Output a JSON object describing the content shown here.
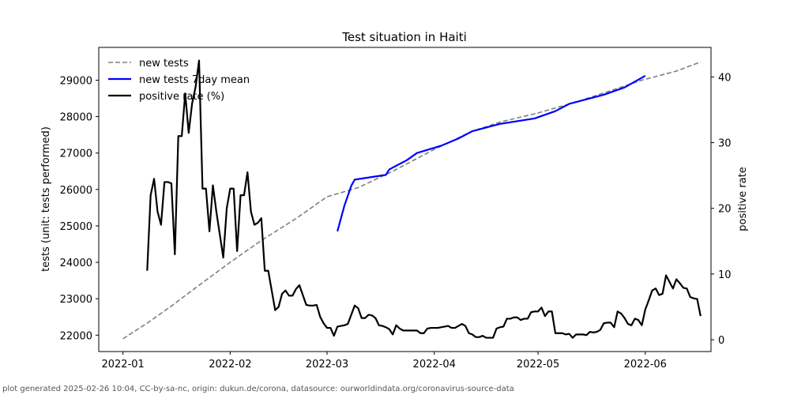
{
  "chart_data": {
    "type": "line",
    "title": "Test situation in Haiti",
    "ylabel": "tests (unit: tests performed)",
    "y2label": "positive rate",
    "grid": false,
    "legend_position": "top-left",
    "xlim": [
      "2021-12-25",
      "2022-06-20"
    ],
    "ylim": [
      21550,
      29900
    ],
    "y2lim": [
      -1.8,
      44.5
    ],
    "x_ticks": [
      "2022-01-01",
      "2022-02-01",
      "2022-03-01",
      "2022-04-01",
      "2022-05-01",
      "2022-06-01"
    ],
    "x_tick_labels": [
      "2022-01",
      "2022-02",
      "2022-03",
      "2022-04",
      "2022-05",
      "2022-06"
    ],
    "y_ticks": [
      22000,
      23000,
      24000,
      25000,
      26000,
      27000,
      28000,
      29000
    ],
    "y2_ticks": [
      0,
      10,
      20,
      30,
      40
    ],
    "series": [
      {
        "name": "new tests",
        "axis": "left",
        "color": "#808080",
        "style": "dashed",
        "points": [
          [
            "2022-01-01",
            21900
          ],
          [
            "2022-01-08",
            22330
          ],
          [
            "2022-01-15",
            22800
          ],
          [
            "2022-01-22",
            23300
          ],
          [
            "2022-02-01",
            24000
          ],
          [
            "2022-02-10",
            24600
          ],
          [
            "2022-02-20",
            25200
          ],
          [
            "2022-03-01",
            25800
          ],
          [
            "2022-03-10",
            26050
          ],
          [
            "2022-03-20",
            26500
          ],
          [
            "2022-04-01",
            27100
          ],
          [
            "2022-04-12",
            27600
          ],
          [
            "2022-04-20",
            27850
          ],
          [
            "2022-05-01",
            28100
          ],
          [
            "2022-05-12",
            28400
          ],
          [
            "2022-05-20",
            28650
          ],
          [
            "2022-05-31",
            29000
          ],
          [
            "2022-06-10",
            29250
          ],
          [
            "2022-06-17",
            29500
          ]
        ]
      },
      {
        "name": "new tests 7day mean",
        "axis": "left",
        "color": "#0000ff",
        "style": "solid",
        "points": [
          [
            "2022-03-04",
            24850
          ],
          [
            "2022-03-06",
            25550
          ],
          [
            "2022-03-08",
            26100
          ],
          [
            "2022-03-09",
            26270
          ],
          [
            "2022-03-18",
            26400
          ],
          [
            "2022-03-19",
            26550
          ],
          [
            "2022-03-24",
            26800
          ],
          [
            "2022-03-27",
            27000
          ],
          [
            "2022-04-03",
            27200
          ],
          [
            "2022-04-08",
            27400
          ],
          [
            "2022-04-12",
            27600
          ],
          [
            "2022-04-20",
            27800
          ],
          [
            "2022-04-30",
            27950
          ],
          [
            "2022-05-06",
            28150
          ],
          [
            "2022-05-10",
            28350
          ],
          [
            "2022-05-20",
            28600
          ],
          [
            "2022-05-26",
            28800
          ],
          [
            "2022-06-01",
            29120
          ]
        ]
      },
      {
        "name": "positive rate (%)",
        "axis": "right",
        "color": "#000000",
        "style": "solid",
        "points": [
          [
            "2022-01-08",
            10.5
          ],
          [
            "2022-01-09",
            22
          ],
          [
            "2022-01-10",
            24.5
          ],
          [
            "2022-01-11",
            19.5
          ],
          [
            "2022-01-12",
            17.5
          ],
          [
            "2022-01-13",
            24
          ],
          [
            "2022-01-14",
            24
          ],
          [
            "2022-01-15",
            23.8
          ],
          [
            "2022-01-16",
            13
          ],
          [
            "2022-01-17",
            31
          ],
          [
            "2022-01-18",
            31
          ],
          [
            "2022-01-19",
            37.5
          ],
          [
            "2022-01-20",
            31.5
          ],
          [
            "2022-01-21",
            36
          ],
          [
            "2022-01-22",
            38.5
          ],
          [
            "2022-01-23",
            42.5
          ],
          [
            "2022-01-24",
            23
          ],
          [
            "2022-01-25",
            23
          ],
          [
            "2022-01-26",
            16.5
          ],
          [
            "2022-01-27",
            23.5
          ],
          [
            "2022-01-28",
            19.5
          ],
          [
            "2022-01-29",
            16
          ],
          [
            "2022-01-30",
            12.5
          ],
          [
            "2022-01-31",
            20
          ],
          [
            "2022-02-01",
            23
          ],
          [
            "2022-02-02",
            23
          ],
          [
            "2022-02-03",
            13.5
          ],
          [
            "2022-02-04",
            22
          ],
          [
            "2022-02-05",
            22
          ],
          [
            "2022-02-06",
            25.5
          ],
          [
            "2022-02-07",
            19.5
          ],
          [
            "2022-02-08",
            17.5
          ],
          [
            "2022-02-09",
            17.8
          ],
          [
            "2022-02-10",
            18.5
          ],
          [
            "2022-02-11",
            10.5
          ],
          [
            "2022-02-12",
            10.5
          ],
          [
            "2022-02-13",
            7.5
          ],
          [
            "2022-02-14",
            4.5
          ],
          [
            "2022-02-15",
            5
          ],
          [
            "2022-02-16",
            7
          ],
          [
            "2022-02-17",
            7.5
          ],
          [
            "2022-02-18",
            6.7
          ],
          [
            "2022-02-19",
            6.7
          ],
          [
            "2022-02-20",
            7.7
          ],
          [
            "2022-02-21",
            8.3
          ],
          [
            "2022-02-22",
            6.8
          ],
          [
            "2022-02-23",
            5.3
          ],
          [
            "2022-02-24",
            5.2
          ],
          [
            "2022-02-25",
            5.2
          ],
          [
            "2022-02-26",
            5.3
          ],
          [
            "2022-02-27",
            3.5
          ],
          [
            "2022-02-28",
            2.5
          ],
          [
            "2022-03-01",
            1.8
          ],
          [
            "2022-03-02",
            1.8
          ],
          [
            "2022-03-03",
            0.6
          ],
          [
            "2022-03-04",
            2
          ],
          [
            "2022-03-05",
            2.1
          ],
          [
            "2022-03-06",
            2.2
          ],
          [
            "2022-03-07",
            2.4
          ],
          [
            "2022-03-08",
            3.8
          ],
          [
            "2022-03-09",
            5.2
          ],
          [
            "2022-03-10",
            4.8
          ],
          [
            "2022-03-11",
            3.3
          ],
          [
            "2022-03-12",
            3.3
          ],
          [
            "2022-03-13",
            3.8
          ],
          [
            "2022-03-14",
            3.7
          ],
          [
            "2022-03-15",
            3.3
          ],
          [
            "2022-03-16",
            2.2
          ],
          [
            "2022-03-17",
            2.1
          ],
          [
            "2022-03-18",
            1.9
          ],
          [
            "2022-03-19",
            1.6
          ],
          [
            "2022-03-20",
            0.8
          ],
          [
            "2022-03-21",
            2.2
          ],
          [
            "2022-03-22",
            1.7
          ],
          [
            "2022-03-23",
            1.4
          ],
          [
            "2022-03-24",
            1.4
          ],
          [
            "2022-03-25",
            1.4
          ],
          [
            "2022-03-26",
            1.4
          ],
          [
            "2022-03-27",
            1.4
          ],
          [
            "2022-03-28",
            1.0
          ],
          [
            "2022-03-29",
            1.0
          ],
          [
            "2022-03-30",
            1.7
          ],
          [
            "2022-03-31",
            1.8
          ],
          [
            "2022-04-01",
            1.8
          ],
          [
            "2022-04-02",
            1.8
          ],
          [
            "2022-04-03",
            1.9
          ],
          [
            "2022-04-04",
            2.0
          ],
          [
            "2022-04-05",
            2.1
          ],
          [
            "2022-04-06",
            1.8
          ],
          [
            "2022-04-07",
            1.8
          ],
          [
            "2022-04-08",
            2.1
          ],
          [
            "2022-04-09",
            2.4
          ],
          [
            "2022-04-10",
            2.1
          ],
          [
            "2022-04-11",
            1.0
          ],
          [
            "2022-04-12",
            0.8
          ],
          [
            "2022-04-13",
            0.4
          ],
          [
            "2022-04-14",
            0.4
          ],
          [
            "2022-04-15",
            0.6
          ],
          [
            "2022-04-16",
            0.3
          ],
          [
            "2022-04-17",
            0.3
          ],
          [
            "2022-04-18",
            0.3
          ],
          [
            "2022-04-19",
            1.7
          ],
          [
            "2022-04-20",
            1.9
          ],
          [
            "2022-04-21",
            2.0
          ],
          [
            "2022-04-22",
            3.2
          ],
          [
            "2022-04-23",
            3.2
          ],
          [
            "2022-04-24",
            3.4
          ],
          [
            "2022-04-25",
            3.4
          ],
          [
            "2022-04-26",
            3.0
          ],
          [
            "2022-04-27",
            3.2
          ],
          [
            "2022-04-28",
            3.2
          ],
          [
            "2022-04-29",
            4.2
          ],
          [
            "2022-04-30",
            4.3
          ],
          [
            "2022-05-01",
            4.3
          ],
          [
            "2022-05-02",
            4.9
          ],
          [
            "2022-05-03",
            3.6
          ],
          [
            "2022-05-04",
            4.3
          ],
          [
            "2022-05-05",
            4.3
          ],
          [
            "2022-05-06",
            1.0
          ],
          [
            "2022-05-07",
            1.0
          ],
          [
            "2022-05-08",
            1.0
          ],
          [
            "2022-05-09",
            0.8
          ],
          [
            "2022-05-10",
            0.9
          ],
          [
            "2022-05-11",
            0.3
          ],
          [
            "2022-05-12",
            0.8
          ],
          [
            "2022-05-13",
            0.8
          ],
          [
            "2022-05-14",
            0.8
          ],
          [
            "2022-05-15",
            0.7
          ],
          [
            "2022-05-16",
            1.2
          ],
          [
            "2022-05-17",
            1.1
          ],
          [
            "2022-05-18",
            1.2
          ],
          [
            "2022-05-19",
            1.5
          ],
          [
            "2022-05-20",
            2.5
          ],
          [
            "2022-05-21",
            2.6
          ],
          [
            "2022-05-22",
            2.6
          ],
          [
            "2022-05-23",
            1.9
          ],
          [
            "2022-05-24",
            4.3
          ],
          [
            "2022-05-25",
            4.0
          ],
          [
            "2022-05-26",
            3.3
          ],
          [
            "2022-05-27",
            2.4
          ],
          [
            "2022-05-28",
            2.2
          ],
          [
            "2022-05-29",
            3.2
          ],
          [
            "2022-05-30",
            3.0
          ],
          [
            "2022-05-31",
            2.2
          ],
          [
            "2022-06-01",
            4.6
          ],
          [
            "2022-06-02",
            6.0
          ],
          [
            "2022-06-03",
            7.5
          ],
          [
            "2022-06-04",
            7.8
          ],
          [
            "2022-06-05",
            6.8
          ],
          [
            "2022-06-06",
            7.0
          ],
          [
            "2022-06-07",
            9.8
          ],
          [
            "2022-06-08",
            8.8
          ],
          [
            "2022-06-09",
            7.8
          ],
          [
            "2022-06-10",
            9.2
          ],
          [
            "2022-06-11",
            8.6
          ],
          [
            "2022-06-12",
            7.9
          ],
          [
            "2022-06-13",
            7.8
          ],
          [
            "2022-06-14",
            6.5
          ],
          [
            "2022-06-15",
            6.3
          ],
          [
            "2022-06-16",
            6.2
          ],
          [
            "2022-06-17",
            3.6
          ]
        ]
      }
    ]
  },
  "footer": "plot generated 2025-02-26 10:04, CC-by-sa-nc, origin: dukun.de/corona, datasource: ourworldindata.org/coronavirus-source-data"
}
